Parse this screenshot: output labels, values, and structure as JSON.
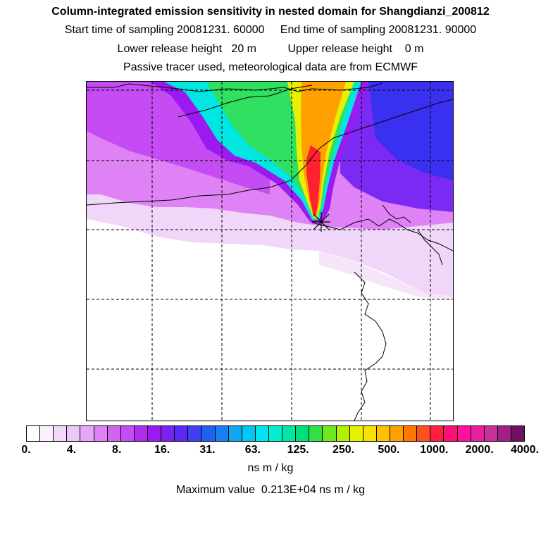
{
  "header": {
    "title": "Column-integrated emission sensitivity in nested domain for Shangdianzi_200812",
    "sampling_line": "Start time of sampling 20081231. 60000     End time of sampling 20081231. 90000",
    "release_line": "Lower release height   20 m          Upper release height    0 m",
    "tracer_line": "Passive tracer used, meteorological data are from ECMWF"
  },
  "map": {
    "station_marker": "star-marker",
    "plume_colors": {
      "background": "#ffffff",
      "light_lavender": "#f0d6f8",
      "magenta_light": "#de82f5",
      "magenta": "#c54cf2",
      "purple": "#a020f0",
      "blue": "#2f2ff0",
      "cyan": "#00f0e0",
      "green": "#30e060",
      "yellow": "#f0f000",
      "orange": "#ffa000",
      "red": "#ff2020"
    }
  },
  "colorbar": {
    "colors": [
      "#ffffff",
      "#fbeefd",
      "#f4d8fa",
      "#eec6f8",
      "#e6a8f6",
      "#de82f5",
      "#d264f3",
      "#c54cf2",
      "#b22cf0",
      "#9a1af0",
      "#7a22f2",
      "#5a2af2",
      "#4040f2",
      "#2060f0",
      "#1880f0",
      "#10a8f0",
      "#00c8f0",
      "#00e6f0",
      "#00f0d0",
      "#00e8a8",
      "#00e078",
      "#30e048",
      "#70e820",
      "#b0f000",
      "#e6f000",
      "#f8e000",
      "#ffc000",
      "#ffa000",
      "#ff7800",
      "#ff5020",
      "#ff2040",
      "#ff1070",
      "#ff10a0",
      "#e8209c",
      "#c8309a",
      "#a02088",
      "#701060"
    ],
    "tick_labels": [
      "0.",
      "4.",
      "8.",
      "16.",
      "31.",
      "63.",
      "125.",
      "250.",
      "500.",
      "1000.",
      "2000.",
      "4000."
    ],
    "units": "ns m / kg",
    "max_value_line": "Maximum value  0.213E+04 ns m / kg"
  }
}
